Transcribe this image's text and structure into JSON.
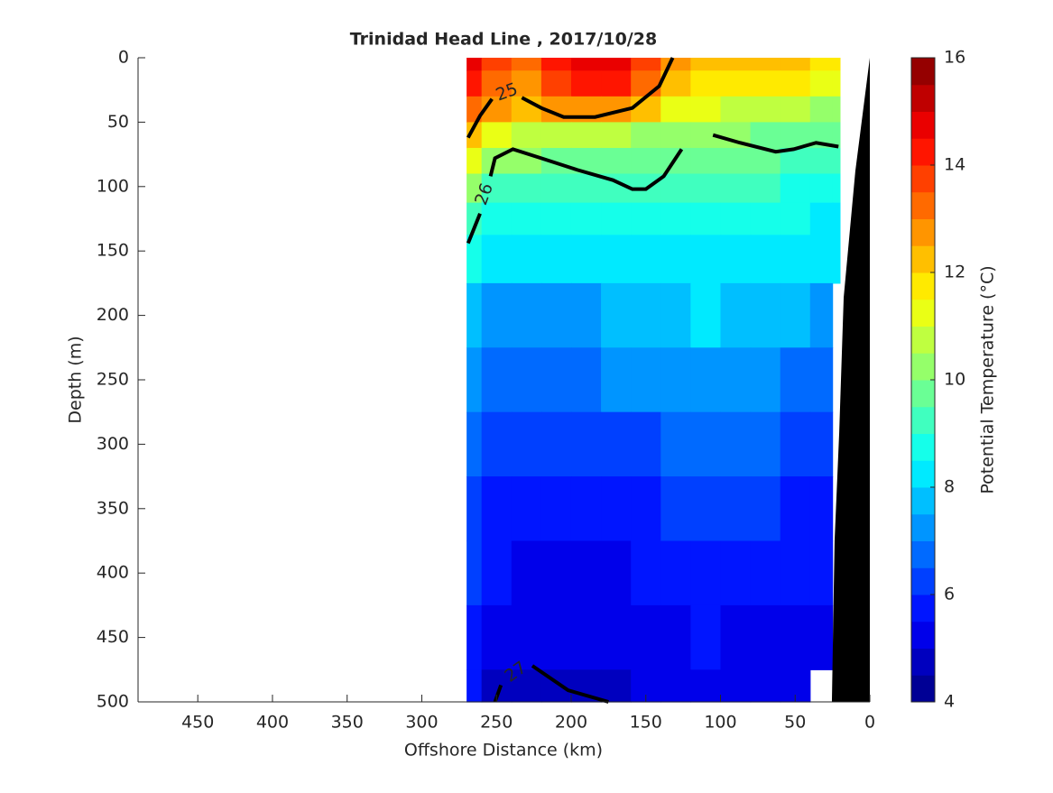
{
  "chart_data": {
    "type": "contourf",
    "title": "Trinidad Head Line , 2017/10/28",
    "x_label": "Offshore Distance (km)",
    "y_label": "Depth (m)",
    "xlim": [
      490,
      0
    ],
    "xticks": [
      450,
      400,
      350,
      300,
      250,
      200,
      150,
      100,
      50,
      0
    ],
    "ylim": [
      0,
      500
    ],
    "yticks": [
      0,
      50,
      100,
      150,
      200,
      250,
      300,
      350,
      400,
      450,
      500
    ],
    "x": [
      270,
      250,
      230,
      210,
      190,
      170,
      150,
      130,
      110,
      90,
      70,
      50,
      30,
      20
    ],
    "y": [
      0,
      20,
      40,
      60,
      80,
      100,
      125,
      150,
      200,
      250,
      300,
      350,
      400,
      450,
      500
    ],
    "z": [
      [
        14.5,
        13.5,
        13.0,
        14.0,
        14.6,
        14.6,
        13.8,
        12.5,
        12.2,
        12.0,
        12.3,
        12.2,
        11.8,
        11.5
      ],
      [
        14.0,
        13.2,
        12.8,
        13.6,
        14.3,
        14.2,
        13.0,
        12.0,
        11.8,
        11.6,
        11.8,
        11.6,
        11.2,
        11.0
      ],
      [
        13.0,
        12.5,
        12.0,
        12.5,
        12.6,
        12.5,
        12.0,
        11.0,
        11.0,
        10.8,
        10.8,
        10.5,
        10.2,
        10.0
      ],
      [
        12.0,
        11.0,
        10.8,
        10.8,
        10.8,
        10.5,
        10.3,
        10.0,
        10.0,
        10.0,
        9.9,
        9.8,
        9.7,
        9.6
      ],
      [
        11.0,
        10.2,
        10.0,
        9.9,
        9.8,
        9.8,
        9.7,
        9.5,
        9.6,
        9.6,
        9.5,
        9.4,
        9.3,
        9.2
      ],
      [
        10.0,
        9.4,
        9.3,
        9.2,
        9.2,
        9.2,
        9.3,
        9.0,
        9.0,
        9.0,
        9.0,
        8.9,
        8.8,
        8.8
      ],
      [
        9.3,
        8.8,
        8.7,
        8.7,
        8.7,
        8.8,
        8.9,
        8.6,
        8.5,
        8.6,
        8.6,
        8.5,
        8.4,
        8.4
      ],
      [
        8.6,
        8.3,
        8.4,
        8.4,
        8.3,
        8.3,
        8.4,
        8.3,
        8.2,
        8.3,
        8.2,
        8.1,
        8.0,
        8.0
      ],
      [
        7.6,
        7.2,
        7.0,
        7.1,
        7.3,
        7.5,
        7.6,
        7.7,
        8.0,
        7.9,
        7.7,
        7.5,
        7.4,
        null
      ],
      [
        7.0,
        6.8,
        6.6,
        6.7,
        6.9,
        7.0,
        7.1,
        7.2,
        7.3,
        7.2,
        7.0,
        6.9,
        6.8,
        null
      ],
      [
        6.5,
        6.1,
        6.0,
        6.2,
        6.3,
        6.4,
        6.4,
        6.5,
        6.6,
        6.6,
        6.5,
        6.4,
        6.3,
        null
      ],
      [
        6.2,
        5.8,
        5.6,
        5.5,
        5.5,
        5.7,
        5.9,
        6.0,
        6.1,
        6.1,
        6.0,
        5.9,
        5.9,
        null
      ],
      [
        6.0,
        5.6,
        5.4,
        5.3,
        5.3,
        5.4,
        5.6,
        5.7,
        5.8,
        5.8,
        5.7,
        5.6,
        5.7,
        null
      ],
      [
        5.8,
        5.3,
        5.1,
        5.0,
        5.0,
        5.1,
        5.3,
        5.4,
        5.5,
        5.4,
        5.3,
        5.3,
        5.4,
        null
      ],
      [
        5.6,
        4.9,
        4.6,
        4.5,
        4.6,
        4.8,
        5.1,
        5.3,
        5.4,
        5.3,
        5.3,
        5.2,
        null,
        null
      ]
    ],
    "contours": [
      {
        "level": 25,
        "label_at": [
          243,
          27
        ],
        "x": [
          269,
          261,
          253,
          null,
          233,
          220,
          205,
          184,
          159,
          141,
          132
        ],
        "y": [
          62,
          45,
          32,
          null,
          31,
          39,
          46,
          46,
          39,
          22,
          0
        ]
      },
      {
        "level": 26,
        "label_at": [
          258,
          106
        ],
        "x": [
          269,
          261,
          null,
          254,
          251,
          239,
          220,
          196,
          172,
          159,
          150,
          138,
          126,
          null,
          105,
          87,
          63,
          51,
          36,
          21
        ],
        "y": [
          144,
          121,
          null,
          92,
          78,
          71,
          78,
          87,
          95,
          102,
          102,
          92,
          71,
          null,
          60,
          66,
          73,
          71,
          66,
          69
        ]
      },
      {
        "level": 27,
        "label_at": [
          237,
          477
        ],
        "x": [
          251,
          247,
          null,
          226,
          202,
          175
        ],
        "y": [
          500,
          487,
          null,
          472,
          491,
          500
        ]
      }
    ],
    "bathymetry": {
      "color": "#000000",
      "x": [
        0,
        9.7,
        17.5,
        20.5,
        23.6,
        25.4
      ],
      "y": [
        0,
        88,
        186,
        291,
        375,
        500
      ]
    },
    "colorbar": {
      "label": "Potential Temperature (°C)",
      "clim": [
        4,
        16
      ],
      "step": 0.5,
      "ticks": [
        4,
        6,
        8,
        10,
        12,
        14,
        16
      ],
      "colormap": "jet"
    }
  }
}
